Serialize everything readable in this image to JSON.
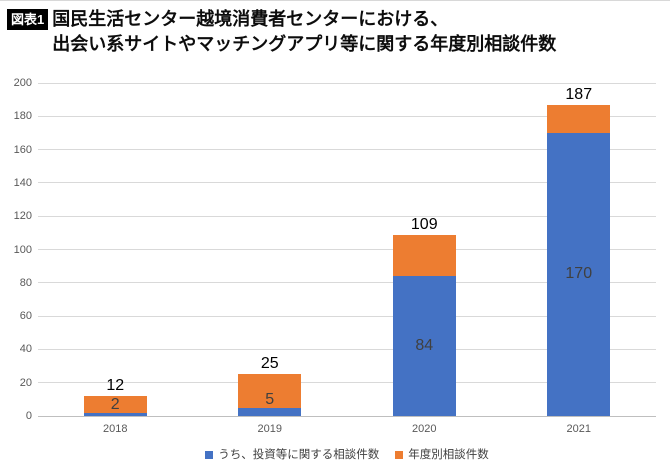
{
  "header": {
    "badge": "図表1",
    "title_line1": "国民生活センター越境消費者センターにおける、",
    "title_line2": "出会い系サイトやマッチングアプリ等に関する年度別相談件数"
  },
  "chart_data": {
    "type": "bar",
    "stacked": true,
    "title": "国民生活センター越境消費者センターにおける、出会い系サイトやマッチングアプリ等に関する年度別相談件数",
    "categories": [
      "2018",
      "2019",
      "2020",
      "2021"
    ],
    "series": [
      {
        "name": "うち、投資等に関する相談件数",
        "color": "#4472C4",
        "values": [
          2,
          5,
          84,
          170
        ],
        "label_position": "inside"
      },
      {
        "name": "年度別相談件数",
        "color": "#ED7D31",
        "values": [
          12,
          25,
          109,
          187
        ],
        "values_are_totals": true,
        "label_position": "above-bar"
      }
    ],
    "xlabel": "",
    "ylabel": "",
    "ylim": [
      0,
      200
    ],
    "yticks": [
      0,
      20,
      40,
      60,
      80,
      100,
      120,
      140,
      160,
      180,
      200
    ],
    "grid": "horizontal",
    "legend_position": "bottom"
  },
  "colors": {
    "grid": "#d9d9d9",
    "axis": "#bfbfbf",
    "tick_text": "#595959",
    "total_label": "#000000",
    "inside_label": "#404040",
    "legend_text": "#404040",
    "badge_bg": "#000000",
    "badge_text": "#ffffff"
  }
}
